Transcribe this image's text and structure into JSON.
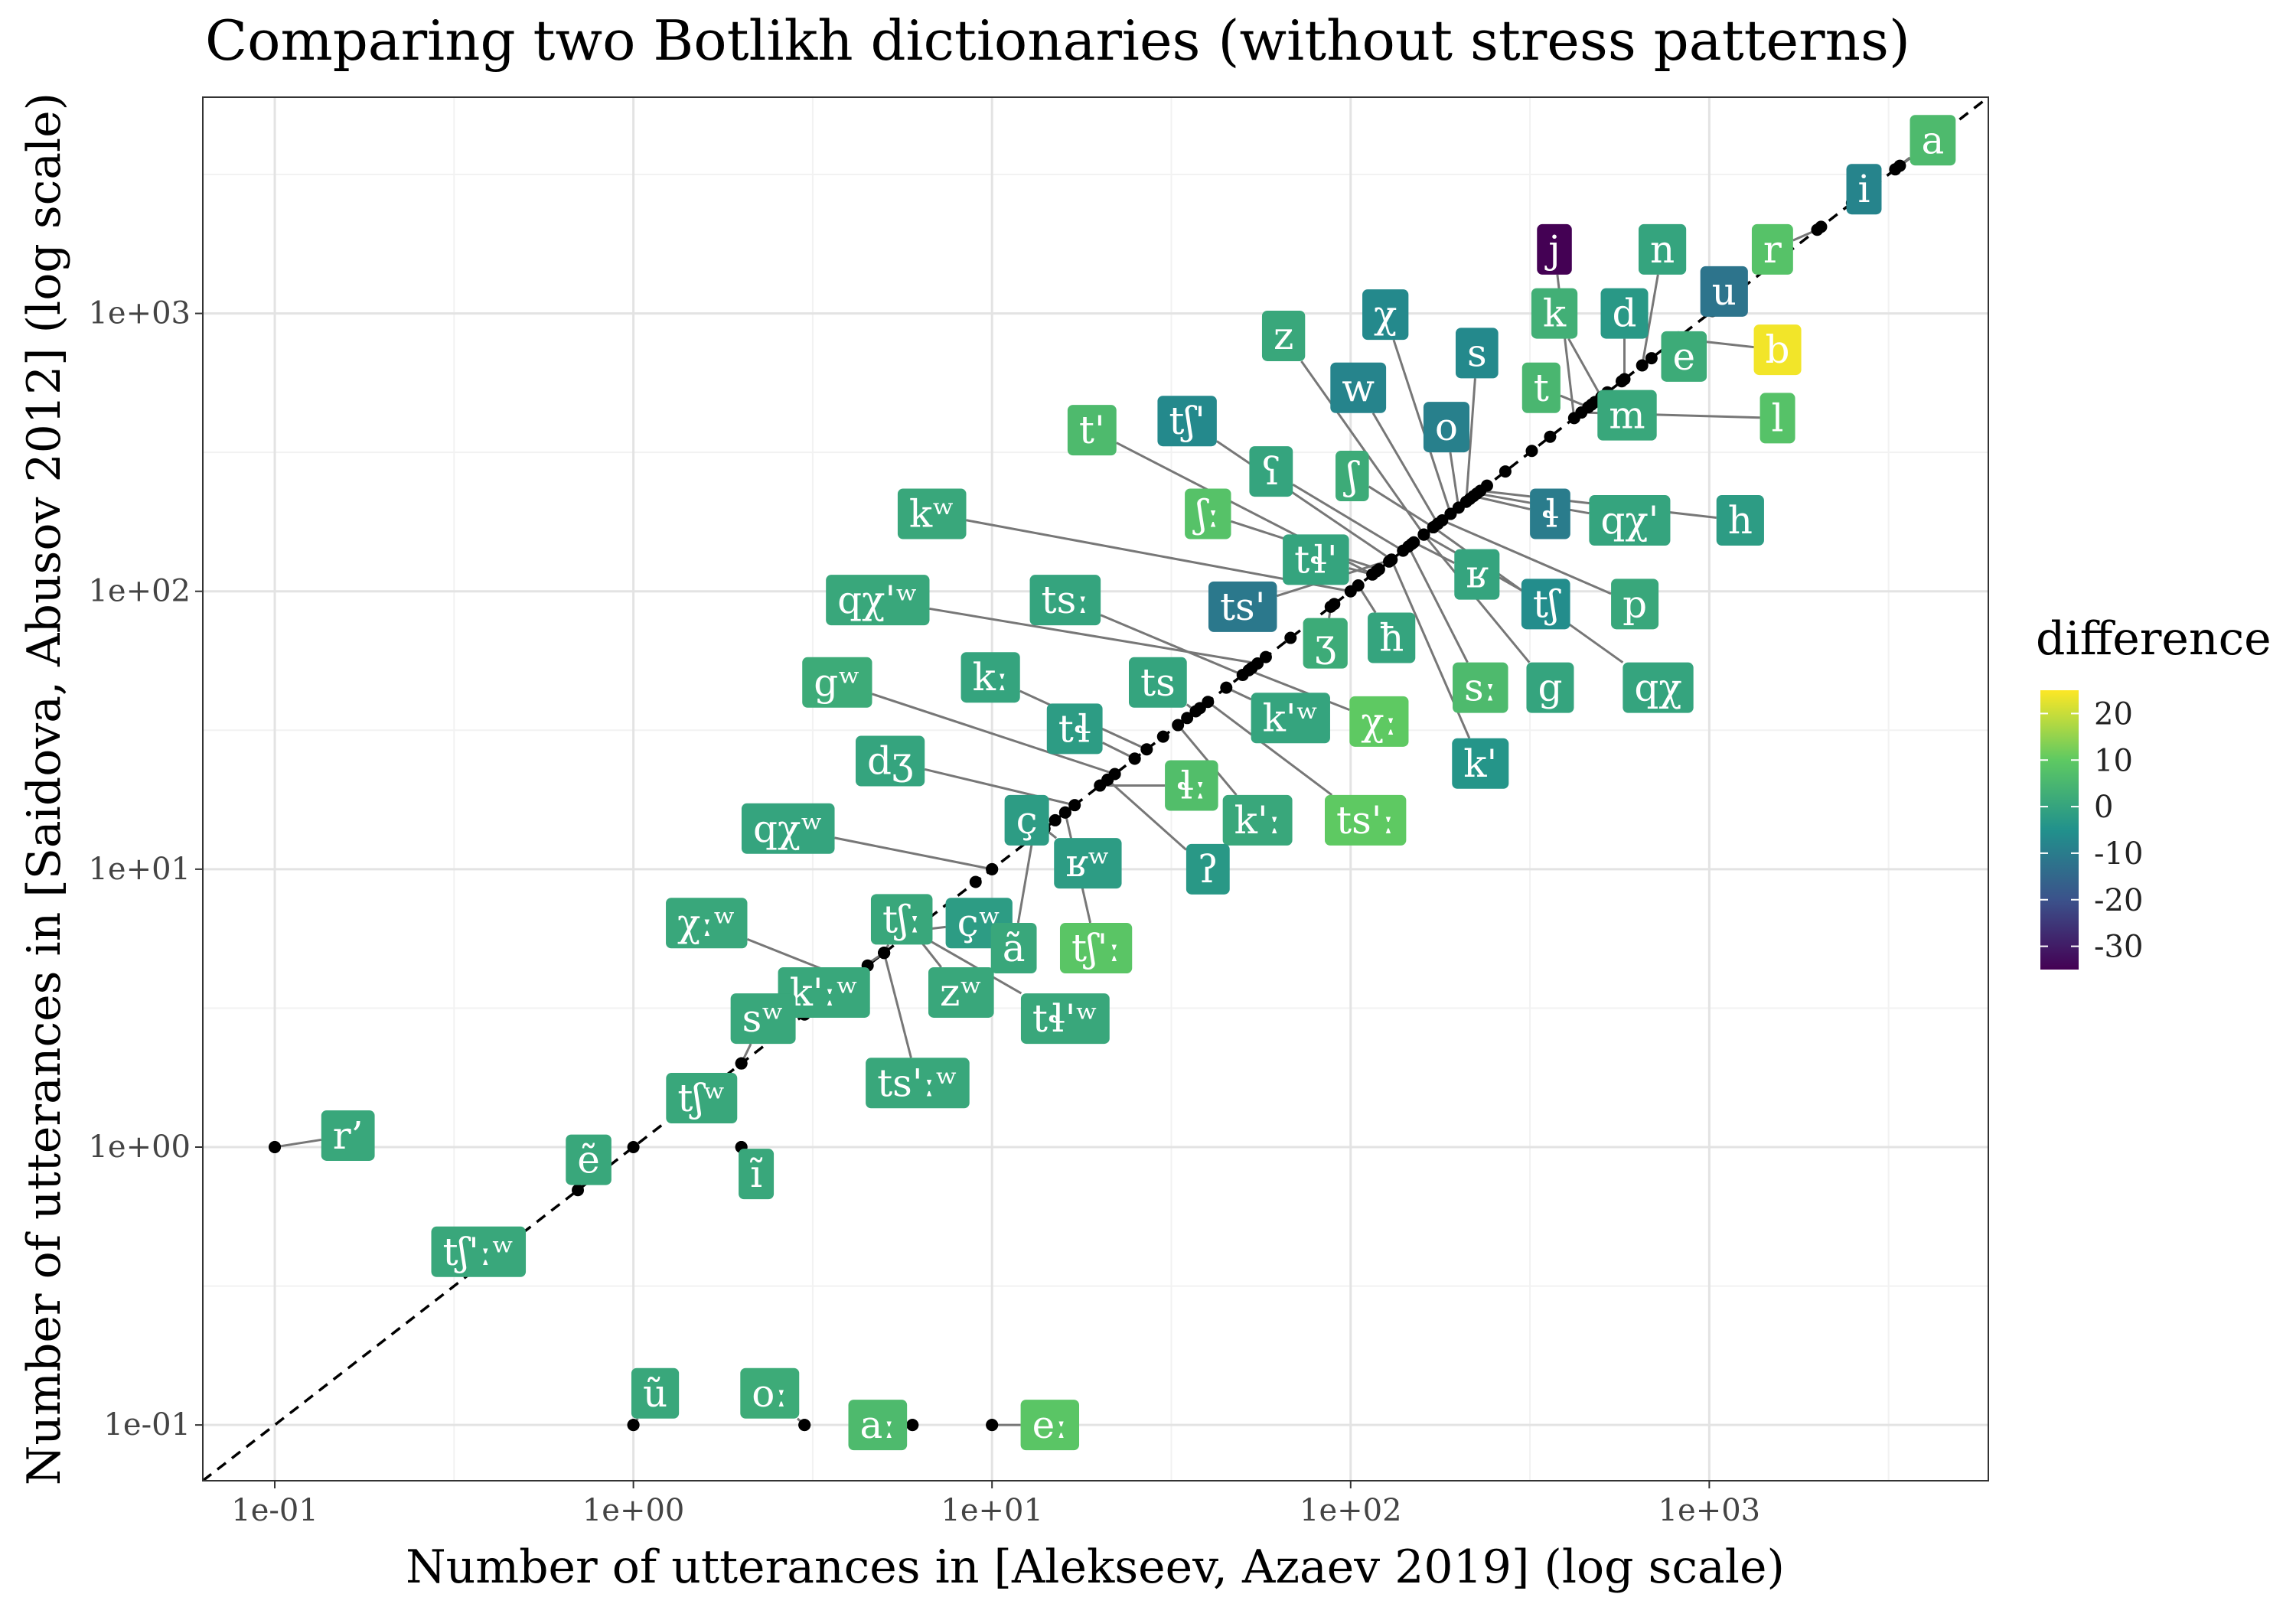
{
  "chart_data": {
    "type": "scatter",
    "title": "Comparing two Botlikh dictionaries (without stress patterns)",
    "xlabel": "Number of utterances in [Alekseev, Azaev 2019] (log scale)",
    "ylabel": "Number of utterances in [Saidova, Abusov 2012] (log scale)",
    "x_scale": "log10",
    "y_scale": "log10",
    "xlim": [
      0.063,
      6000
    ],
    "ylim": [
      0.063,
      6000
    ],
    "x_ticks": [
      {
        "value": 0.1,
        "label": "1e-01"
      },
      {
        "value": 1,
        "label": "1e+00"
      },
      {
        "value": 10,
        "label": "1e+01"
      },
      {
        "value": 100,
        "label": "1e+02"
      },
      {
        "value": 1000,
        "label": "1e+03"
      }
    ],
    "y_ticks": [
      {
        "value": 0.1,
        "label": "1e-01"
      },
      {
        "value": 1,
        "label": "1e+00"
      },
      {
        "value": 10,
        "label": "1e+01"
      },
      {
        "value": 100,
        "label": "1e+02"
      },
      {
        "value": 1000,
        "label": "1e+03"
      }
    ],
    "reference_line": "y = x (dashed)",
    "grid": true,
    "legend": {
      "title": "difference",
      "placement": "right",
      "ticks": [
        "20",
        "10",
        "0",
        "-10",
        "-20",
        "-30"
      ],
      "range": [
        -35,
        25
      ],
      "colors": [
        "#440154",
        "#3b528b",
        "#21918c",
        "#5ec962",
        "#fde725"
      ]
    },
    "points": [
      {
        "label": "a",
        "x": 3400,
        "y": 3400,
        "diff": 6,
        "lx": 4200,
        "ly": 4200
      },
      {
        "label": "i",
        "x": 2500,
        "y": 2500,
        "diff": -8,
        "lx": 2700,
        "ly": 2800
      },
      {
        "label": "r",
        "x": 2000,
        "y": 2000,
        "diff": 8,
        "lx": 1500,
        "ly": 1700
      },
      {
        "label": "u",
        "x": 1050,
        "y": 1050,
        "diff": -12,
        "lx": 1100,
        "ly": 1200
      },
      {
        "label": "j",
        "x": 420,
        "y": 420,
        "diff": -35,
        "lx": 370,
        "ly": 1700
      },
      {
        "label": "n",
        "x": 650,
        "y": 650,
        "diff": 0,
        "lx": 740,
        "ly": 1700
      },
      {
        "label": "k",
        "x": 500,
        "y": 500,
        "diff": 3,
        "lx": 370,
        "ly": 1000
      },
      {
        "label": "d",
        "x": 580,
        "y": 580,
        "diff": -3,
        "lx": 580,
        "ly": 1000
      },
      {
        "label": "e",
        "x": 820,
        "y": 820,
        "diff": 2,
        "lx": 850,
        "ly": 700
      },
      {
        "label": "b",
        "x": 900,
        "y": 800,
        "diff": 24,
        "lx": 1550,
        "ly": 740
      },
      {
        "label": "t",
        "x": 460,
        "y": 460,
        "diff": 5,
        "lx": 340,
        "ly": 540
      },
      {
        "label": "m",
        "x": 470,
        "y": 470,
        "diff": 1,
        "lx": 590,
        "ly": 430
      },
      {
        "label": "l",
        "x": 440,
        "y": 440,
        "diff": 8,
        "lx": 1550,
        "ly": 420
      },
      {
        "label": "z",
        "x": 160,
        "y": 160,
        "diff": 1,
        "lx": 65,
        "ly": 830
      },
      {
        "label": "χ",
        "x": 190,
        "y": 190,
        "diff": -7,
        "lx": 125,
        "ly": 990
      },
      {
        "label": "s",
        "x": 210,
        "y": 210,
        "diff": -7,
        "lx": 225,
        "ly": 720
      },
      {
        "label": "w",
        "x": 175,
        "y": 175,
        "diff": -8,
        "lx": 105,
        "ly": 540
      },
      {
        "label": "o",
        "x": 200,
        "y": 200,
        "diff": -9,
        "lx": 185,
        "ly": 390
      },
      {
        "label": "tʃ'",
        "x": 130,
        "y": 130,
        "diff": -7,
        "lx": 35,
        "ly": 410
      },
      {
        "label": "t'",
        "x": 115,
        "y": 115,
        "diff": 6,
        "lx": 19,
        "ly": 380
      },
      {
        "label": "ʕ",
        "x": 140,
        "y": 140,
        "diff": 0,
        "lx": 60,
        "ly": 270
      },
      {
        "label": "ʃ",
        "x": 170,
        "y": 170,
        "diff": 2,
        "lx": 101,
        "ly": 260
      },
      {
        "label": "ɬ",
        "x": 220,
        "y": 220,
        "diff": -10,
        "lx": 360,
        "ly": 190
      },
      {
        "label": "qχ'",
        "x": 225,
        "y": 225,
        "diff": 0,
        "lx": 600,
        "ly": 180
      },
      {
        "label": "h",
        "x": 230,
        "y": 230,
        "diff": -2,
        "lx": 1220,
        "ly": 180
      },
      {
        "label": "kʷ",
        "x": 100,
        "y": 100,
        "diff": 1,
        "lx": 6.8,
        "ly": 190
      },
      {
        "label": "ʃː",
        "x": 120,
        "y": 120,
        "diff": 8,
        "lx": 40,
        "ly": 190
      },
      {
        "label": "tɬ'",
        "x": 115,
        "y": 115,
        "diff": 0,
        "lx": 80,
        "ly": 130
      },
      {
        "label": "ʁ",
        "x": 150,
        "y": 150,
        "diff": 0,
        "lx": 225,
        "ly": 115
      },
      {
        "label": "tʃ",
        "x": 160,
        "y": 160,
        "diff": -6,
        "lx": 350,
        "ly": 90
      },
      {
        "label": "p",
        "x": 180,
        "y": 180,
        "diff": 1,
        "lx": 620,
        "ly": 90
      },
      {
        "label": "qχ'ʷ",
        "x": 55,
        "y": 55,
        "diff": 1,
        "lx": 4.8,
        "ly": 93
      },
      {
        "label": "tsː",
        "x": 50,
        "y": 50,
        "diff": 0,
        "lx": 16,
        "ly": 93
      },
      {
        "label": "ts'",
        "x": 130,
        "y": 130,
        "diff": -11,
        "lx": 50,
        "ly": 88
      },
      {
        "label": "ʒ",
        "x": 88,
        "y": 88,
        "diff": 2,
        "lx": 85,
        "ly": 65
      },
      {
        "label": "ħ",
        "x": 105,
        "y": 105,
        "diff": 0,
        "lx": 130,
        "ly": 68
      },
      {
        "label": "sː",
        "x": 145,
        "y": 145,
        "diff": 6,
        "lx": 230,
        "ly": 45
      },
      {
        "label": "g",
        "x": 160,
        "y": 160,
        "diff": 0,
        "lx": 360,
        "ly": 45
      },
      {
        "label": "qχ",
        "x": 170,
        "y": 170,
        "diff": 0,
        "lx": 720,
        "ly": 45
      },
      {
        "label": "gʷ",
        "x": 22,
        "y": 22,
        "diff": 2,
        "lx": 3.7,
        "ly": 47
      },
      {
        "label": "kː",
        "x": 27,
        "y": 27,
        "diff": 0,
        "lx": 9.9,
        "ly": 49
      },
      {
        "label": "ts",
        "x": 37,
        "y": 37,
        "diff": 0,
        "lx": 29,
        "ly": 47
      },
      {
        "label": "k'ʷ",
        "x": 45,
        "y": 45,
        "diff": 0,
        "lx": 68,
        "ly": 35
      },
      {
        "label": "χː",
        "x": 52,
        "y": 52,
        "diff": 10,
        "lx": 120,
        "ly": 34
      },
      {
        "label": "k'",
        "x": 130,
        "y": 130,
        "diff": -4,
        "lx": 230,
        "ly": 24
      },
      {
        "label": "tɬ",
        "x": 25,
        "y": 25,
        "diff": -2,
        "lx": 17,
        "ly": 32
      },
      {
        "label": "dʒ",
        "x": 17,
        "y": 17,
        "diff": 0,
        "lx": 5.2,
        "ly": 24.5
      },
      {
        "label": "ɬː",
        "x": 20,
        "y": 20,
        "diff": 7,
        "lx": 36,
        "ly": 20
      },
      {
        "label": "k'ː",
        "x": 33,
        "y": 33,
        "diff": 1,
        "lx": 55,
        "ly": 15
      },
      {
        "label": "ts'ː",
        "x": 40,
        "y": 40,
        "diff": 10,
        "lx": 110,
        "ly": 15
      },
      {
        "label": "qχʷ",
        "x": 10,
        "y": 10,
        "diff": 0,
        "lx": 2.7,
        "ly": 14
      },
      {
        "label": "ç",
        "x": 13,
        "y": 13,
        "diff": -2,
        "lx": 12.5,
        "ly": 15
      },
      {
        "label": "ʁʷ",
        "x": 14,
        "y": 14,
        "diff": -2,
        "lx": 18.5,
        "ly": 10.5
      },
      {
        "label": "ʔ",
        "x": 21,
        "y": 21,
        "diff": -3,
        "lx": 40,
        "ly": 10
      },
      {
        "label": "χːʷ",
        "x": 4,
        "y": 4,
        "diff": 1,
        "lx": 1.6,
        "ly": 6.4
      },
      {
        "label": "tʃː",
        "x": 5,
        "y": 5,
        "diff": 1,
        "lx": 5.6,
        "ly": 6.6
      },
      {
        "label": "çʷ",
        "x": 6,
        "y": 6,
        "diff": -2,
        "lx": 9.2,
        "ly": 6.4
      },
      {
        "label": "ã",
        "x": 13,
        "y": 13,
        "diff": 1,
        "lx": 11.5,
        "ly": 5.2
      },
      {
        "label": "tʃ'ː",
        "x": 16,
        "y": 16,
        "diff": 9,
        "lx": 19.5,
        "ly": 5.2
      },
      {
        "label": "k'ːʷ",
        "x": 5,
        "y": 5,
        "diff": 1,
        "lx": 3.4,
        "ly": 3.6
      },
      {
        "label": "zʷ",
        "x": 6,
        "y": 6,
        "diff": 1,
        "lx": 8.2,
        "ly": 3.6
      },
      {
        "label": "tɬ'ʷ",
        "x": 6,
        "y": 6,
        "diff": 1,
        "lx": 16,
        "ly": 2.9
      },
      {
        "label": "sʷ",
        "x": 2,
        "y": 2,
        "diff": 1,
        "lx": 2.3,
        "ly": 2.9
      },
      {
        "label": "ts'ːʷ",
        "x": 5,
        "y": 5,
        "diff": 1,
        "lx": 6.2,
        "ly": 1.7
      },
      {
        "label": "tʃʷ",
        "x": 1.5,
        "y": 1.5,
        "diff": 1,
        "lx": 1.55,
        "ly": 1.5
      },
      {
        "label": "r’",
        "x": 0.1,
        "y": 1,
        "diff": 1,
        "lx": 0.16,
        "ly": 1.1
      },
      {
        "label": "ẽ",
        "x": 0.7,
        "y": 0.7,
        "diff": 1,
        "lx": 0.75,
        "ly": 0.9
      },
      {
        "label": "ĩ",
        "x": 2,
        "y": 1,
        "diff": 1,
        "lx": 2.2,
        "ly": 0.8
      },
      {
        "label": "tʃ'ːʷ",
        "x": 0.4,
        "y": 0.4,
        "diff": 1,
        "lx": 0.37,
        "ly": 0.42
      },
      {
        "label": "ũ",
        "x": 1,
        "y": 0.1,
        "diff": 1,
        "lx": 1.15,
        "ly": 0.13
      },
      {
        "label": "oː",
        "x": 3,
        "y": 0.1,
        "diff": 2,
        "lx": 2.4,
        "ly": 0.13
      },
      {
        "label": "aː",
        "x": 6,
        "y": 0.1,
        "diff": 6,
        "lx": 4.8,
        "ly": 0.1
      },
      {
        "label": "eː",
        "x": 10,
        "y": 0.1,
        "diff": 9,
        "lx": 14.5,
        "ly": 0.1
      }
    ],
    "extra_points": [
      {
        "x": 3300,
        "y": 3300
      },
      {
        "x": 2050,
        "y": 2050
      },
      {
        "x": 1020,
        "y": 1020
      },
      {
        "x": 690,
        "y": 690
      },
      {
        "x": 570,
        "y": 570
      },
      {
        "x": 520,
        "y": 520
      },
      {
        "x": 480,
        "y": 480
      },
      {
        "x": 360,
        "y": 360
      },
      {
        "x": 320,
        "y": 320
      },
      {
        "x": 270,
        "y": 270
      },
      {
        "x": 240,
        "y": 240
      },
      {
        "x": 215,
        "y": 215
      },
      {
        "x": 190,
        "y": 190
      },
      {
        "x": 175,
        "y": 175
      },
      {
        "x": 148,
        "y": 148
      },
      {
        "x": 128,
        "y": 128
      },
      {
        "x": 118,
        "y": 118
      },
      {
        "x": 90,
        "y": 90
      },
      {
        "x": 68,
        "y": 68
      },
      {
        "x": 58,
        "y": 58
      },
      {
        "x": 53,
        "y": 53
      },
      {
        "x": 38,
        "y": 38
      },
      {
        "x": 35,
        "y": 35
      },
      {
        "x": 30,
        "y": 30
      },
      {
        "x": 25,
        "y": 25
      },
      {
        "x": 21,
        "y": 21
      },
      {
        "x": 16,
        "y": 16
      },
      {
        "x": 15,
        "y": 15
      },
      {
        "x": 14,
        "y": 14
      },
      {
        "x": 10,
        "y": 10
      },
      {
        "x": 9,
        "y": 9
      },
      {
        "x": 5,
        "y": 5
      },
      {
        "x": 4.5,
        "y": 4.5
      },
      {
        "x": 3,
        "y": 3
      },
      {
        "x": 2,
        "y": 2
      },
      {
        "x": 1,
        "y": 1
      },
      {
        "x": 0.1,
        "y": 1
      },
      {
        "x": 2,
        "y": 1
      },
      {
        "x": 1,
        "y": 0.1
      },
      {
        "x": 3,
        "y": 0.1
      },
      {
        "x": 6,
        "y": 0.1
      },
      {
        "x": 10,
        "y": 0.1
      }
    ]
  }
}
